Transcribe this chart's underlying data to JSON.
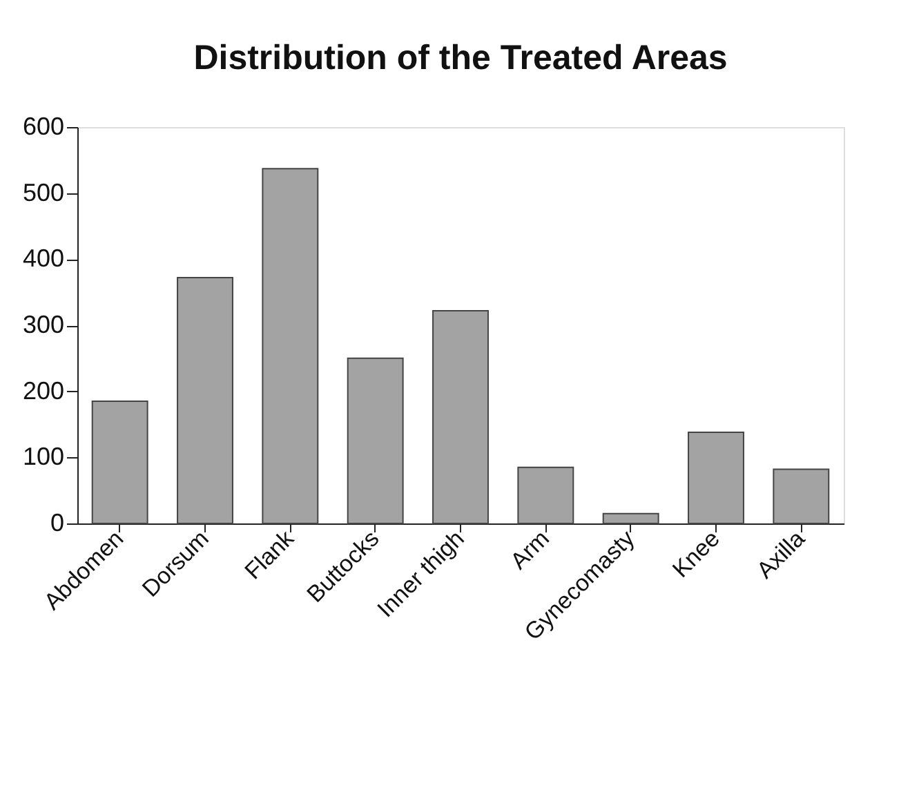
{
  "chart_data": {
    "type": "bar",
    "title": "Distribution of the Treated Areas",
    "categories": [
      "Abdomen",
      "Dorsum",
      "Flank",
      "Buttocks",
      "Inner thigh",
      "Arm",
      "Gynecomasty",
      "Knee",
      "Axilla"
    ],
    "values": [
      185,
      372,
      537,
      250,
      322,
      85,
      15,
      138,
      82
    ],
    "color": "#a3a3a3",
    "ylim": [
      0,
      600
    ],
    "yticks": [
      0,
      100,
      200,
      300,
      400,
      500,
      600
    ],
    "grid": false
  }
}
